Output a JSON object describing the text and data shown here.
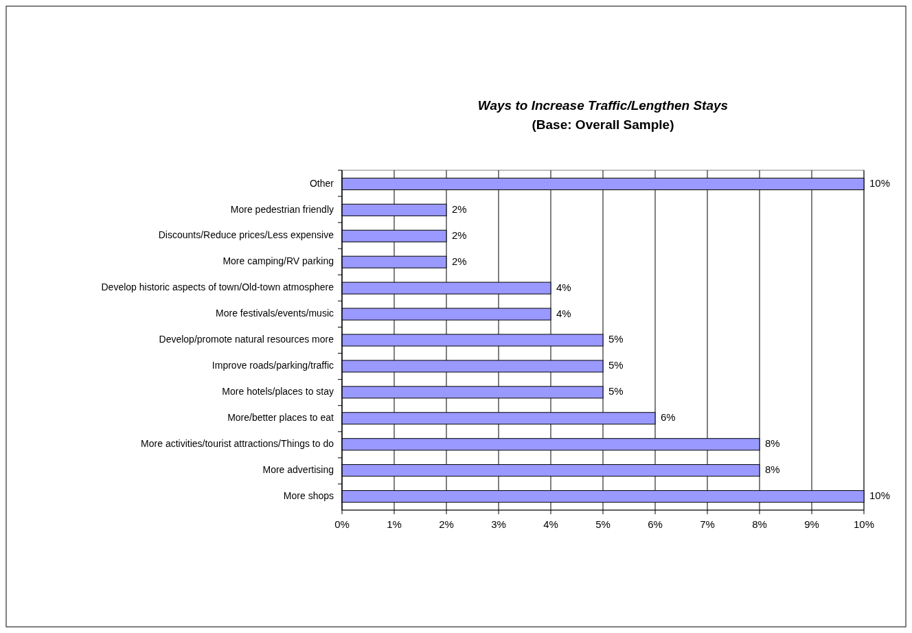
{
  "chart_data": {
    "type": "bar",
    "orientation": "horizontal",
    "title": "Ways to Increase Traffic/Lengthen Stays",
    "subtitle": "(Base: Overall Sample)",
    "categories": [
      "Other",
      "More pedestrian friendly",
      "Discounts/Reduce prices/Less expensive",
      "More camping/RV parking",
      "Develop historic aspects of town/Old-town atmosphere",
      "More festivals/events/music",
      "Develop/promote natural resources more",
      "Improve roads/parking/traffic",
      "More hotels/places to stay",
      "More/better places to eat",
      "More activities/tourist attractions/Things to do",
      "More advertising",
      "More shops"
    ],
    "values": [
      10,
      2,
      2,
      2,
      4,
      4,
      5,
      5,
      5,
      6,
      8,
      8,
      10
    ],
    "value_labels": [
      "10%",
      "2%",
      "2%",
      "2%",
      "4%",
      "4%",
      "5%",
      "5%",
      "5%",
      "6%",
      "8%",
      "8%",
      "10%"
    ],
    "color": "#9999ff",
    "xlim": [
      0,
      10
    ],
    "xticks": [
      {
        "value": 0,
        "label": "0%"
      },
      {
        "value": 1,
        "label": "1%"
      },
      {
        "value": 2,
        "label": "2%"
      },
      {
        "value": 3,
        "label": "3%"
      },
      {
        "value": 4,
        "label": "4%"
      },
      {
        "value": 5,
        "label": "5%"
      },
      {
        "value": 6,
        "label": "6%"
      },
      {
        "value": 7,
        "label": "7%"
      },
      {
        "value": 8,
        "label": "8%"
      },
      {
        "value": 9,
        "label": "9%"
      },
      {
        "value": 10,
        "label": "10%"
      }
    ],
    "grid": "x"
  }
}
